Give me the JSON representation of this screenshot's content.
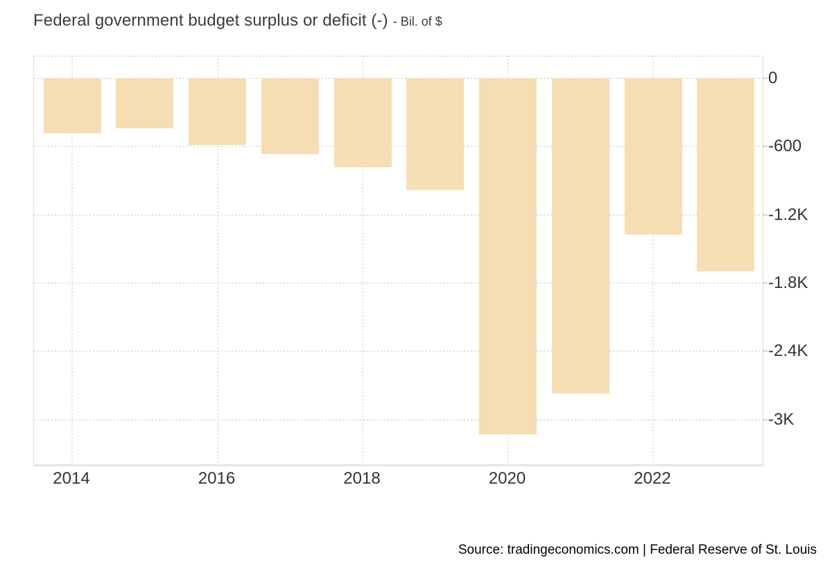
{
  "header": {
    "title": "Federal government budget surplus or deficit (-)",
    "unit": "- Bil. of $"
  },
  "footer": {
    "source": "Source: tradingeconomics.com | Federal Reserve of St. Louis"
  },
  "chart_data": {
    "type": "bar",
    "title": "Federal government budget surplus or deficit (-)",
    "unit_label": "Bil. of $",
    "categories": [
      "2014",
      "2015",
      "2016",
      "2017",
      "2018",
      "2019",
      "2020",
      "2021",
      "2022",
      "2023"
    ],
    "values": [
      -484.6,
      -442.0,
      -584.7,
      -665.4,
      -779.0,
      -983.6,
      -3131.9,
      -2772.2,
      -1375.4,
      -1695.2
    ],
    "series_name": "Federal government budget surplus or deficit",
    "x_axis": {
      "tick_years": [
        "2014",
        "2016",
        "2018",
        "2020",
        "2022"
      ]
    },
    "y_axis": {
      "side": "right",
      "ticks": [
        {
          "value": 0,
          "label": "0"
        },
        {
          "value": -600,
          "label": "-600"
        },
        {
          "value": -1200,
          "label": "-1.2K"
        },
        {
          "value": -1800,
          "label": "-1.8K"
        },
        {
          "value": -2400,
          "label": "-2.4K"
        },
        {
          "value": -3000,
          "label": "-3K"
        }
      ],
      "range": [
        200,
        -3395
      ]
    },
    "grid": true,
    "legend": false
  },
  "colors": {
    "bar": "#f5deb3",
    "grid": "#dedede",
    "axis_border": "#dcdcdc",
    "axis_bottom": "#e6e6e6",
    "tick_mark": "#d2d2d2",
    "tick_text": "#333333",
    "title_text": "#3c3c3c",
    "source_text": "#000000",
    "background": "#ffffff"
  }
}
